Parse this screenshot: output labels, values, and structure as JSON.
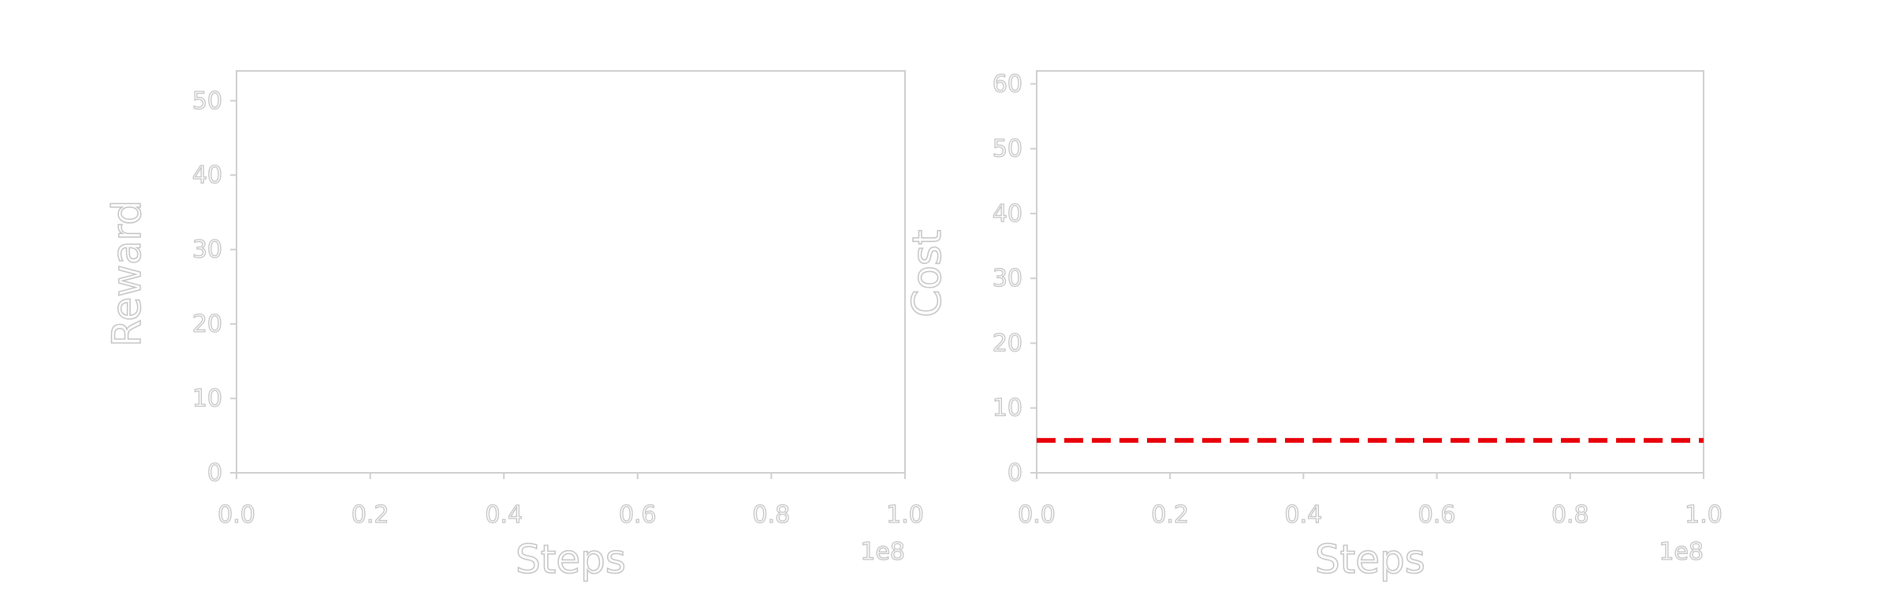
{
  "chart_data": [
    {
      "type": "line",
      "title": "",
      "xlabel": "Steps",
      "ylabel": "Reward",
      "x_offset_label": "1e8",
      "xlim": [
        0.0,
        1.0
      ],
      "ylim": [
        0,
        54
      ],
      "x_ticks": [
        "0.0",
        "0.2",
        "0.4",
        "0.6",
        "0.8",
        "1.0"
      ],
      "y_ticks": [
        "0",
        "10",
        "20",
        "30",
        "40",
        "50"
      ],
      "grid": false,
      "series": []
    },
    {
      "type": "line",
      "title": "",
      "xlabel": "Steps",
      "ylabel": "Cost",
      "x_offset_label": "1e8",
      "xlim": [
        0.0,
        1.0
      ],
      "ylim": [
        0,
        62
      ],
      "x_ticks": [
        "0.0",
        "0.2",
        "0.4",
        "0.6",
        "0.8",
        "1.0"
      ],
      "y_ticks": [
        "0",
        "10",
        "20",
        "30",
        "40",
        "50",
        "60"
      ],
      "grid": false,
      "series": [
        {
          "style": "dashed",
          "color": "#e8000b",
          "x": [
            0.0,
            1.0
          ],
          "values": [
            5,
            5
          ]
        }
      ]
    }
  ]
}
